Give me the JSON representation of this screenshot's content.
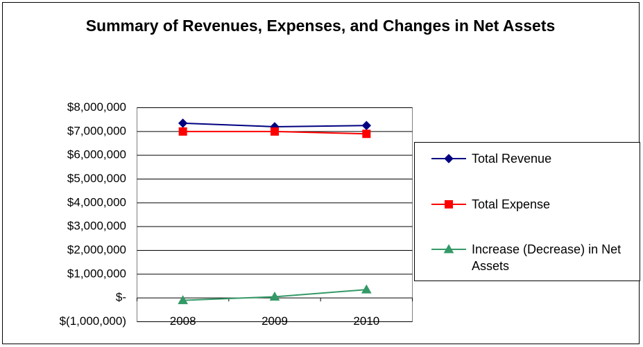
{
  "chart_data": {
    "type": "line",
    "title": "Summary of Revenues, Expenses, and Changes in Net Assets",
    "categories": [
      "2008",
      "2009",
      "2010"
    ],
    "series": [
      {
        "name": "Total Revenue",
        "color": "#000080",
        "marker": "diamond",
        "values": [
          7350000,
          7200000,
          7250000
        ]
      },
      {
        "name": "Total Expense",
        "color": "#ff0000",
        "marker": "square",
        "values": [
          7000000,
          7000000,
          6900000
        ]
      },
      {
        "name": "Increase (Decrease) in Net Assets",
        "color": "#339966",
        "marker": "triangle",
        "values": [
          -100000,
          50000,
          350000
        ]
      }
    ],
    "ylim": [
      -1000000,
      8000000
    ],
    "yticks": [
      {
        "value": -1000000,
        "label": "$(1,000,000)"
      },
      {
        "value": 0,
        "label": "$-"
      },
      {
        "value": 1000000,
        "label": "$1,000,000"
      },
      {
        "value": 2000000,
        "label": "$2,000,000"
      },
      {
        "value": 3000000,
        "label": "$3,000,000"
      },
      {
        "value": 4000000,
        "label": "$4,000,000"
      },
      {
        "value": 5000000,
        "label": "$5,000,000"
      },
      {
        "value": 6000000,
        "label": "$6,000,000"
      },
      {
        "value": 7000000,
        "label": "$7,000,000"
      },
      {
        "value": 8000000,
        "label": "$8,000,000"
      }
    ],
    "grid": true,
    "legend": "right"
  }
}
